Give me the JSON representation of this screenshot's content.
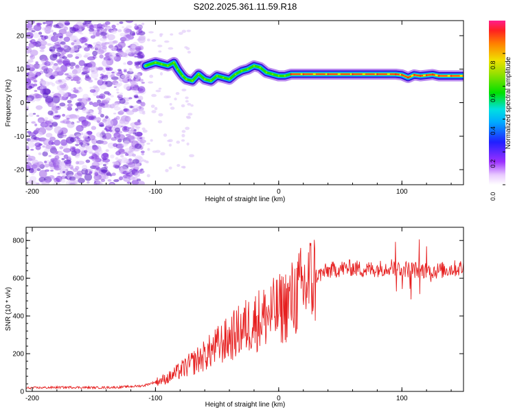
{
  "figure_title": "S202.2025.361.11.59.R18",
  "colors": {
    "snr_line": "#e62020",
    "track_core": "#ff1e1e",
    "speckle": "#8a2be2",
    "axis": "#000000"
  },
  "chart_data": [
    {
      "type": "heatmap",
      "title": "S202.2025.361.11.59.R18",
      "xlabel": "Height of straight line (km)",
      "ylabel": "Frequency (Hz)",
      "xlim": [
        -205,
        150
      ],
      "ylim": [
        -24.5,
        24.5
      ],
      "x_ticks": [
        -200,
        -100,
        0,
        100
      ],
      "x_tick_labels": [
        "-200",
        "-100",
        "0",
        "100"
      ],
      "y_ticks": [
        -20,
        -10,
        0,
        10,
        20
      ],
      "y_tick_labels": [
        "-20",
        "-10",
        "0",
        "10",
        "20"
      ],
      "noise_region_km": [
        -205,
        -110
      ],
      "signal_track": {
        "x": [
          -108,
          -100,
          -95,
          -90,
          -85,
          -82,
          -78,
          -75,
          -70,
          -65,
          -60,
          -55,
          -50,
          -45,
          -40,
          -35,
          -30,
          -25,
          -20,
          -15,
          -10,
          -5,
          0,
          5,
          10,
          20,
          40,
          60,
          80,
          95,
          100,
          105,
          110,
          115,
          120,
          125,
          130,
          140,
          150
        ],
        "freq": [
          11,
          12,
          11.5,
          11,
          12,
          10,
          8,
          7,
          6.5,
          8.5,
          7,
          6.5,
          8,
          7.5,
          7,
          8.5,
          9.5,
          10,
          11,
          10.5,
          9,
          8.5,
          8,
          8,
          8.5,
          8.5,
          8.5,
          8.5,
          8.5,
          8.5,
          8.3,
          7.5,
          8.3,
          8,
          8.2,
          8.4,
          8,
          8,
          8
        ]
      },
      "colorbar": {
        "label": "Normalized spectral amplitude",
        "range": [
          0.0,
          1.0
        ],
        "ticks": [
          0.0,
          0.2,
          0.4,
          0.6,
          0.8
        ],
        "tick_labels": [
          "0.0",
          "0.2",
          "0.4",
          "0.6",
          "0.8"
        ]
      }
    },
    {
      "type": "line",
      "xlabel": "Height of straight line (km)",
      "ylabel": "SNR (10 * v/v)",
      "xlim": [
        -205,
        150
      ],
      "ylim": [
        0,
        870
      ],
      "x_ticks": [
        -200,
        -100,
        0,
        100
      ],
      "x_tick_labels": [
        "-200",
        "-100",
        "0",
        "100"
      ],
      "y_ticks": [
        0,
        200,
        400,
        600,
        800
      ],
      "y_tick_labels": [
        "0",
        "200",
        "400",
        "600",
        "800"
      ],
      "series": [
        {
          "name": "SNR",
          "x": [
            -205,
            -190,
            -170,
            -150,
            -130,
            -110,
            -100,
            -90,
            -80,
            -70,
            -60,
            -50,
            -40,
            -30,
            -20,
            -10,
            0,
            10,
            20,
            30,
            40,
            50,
            60,
            70,
            80,
            90,
            100,
            110,
            120,
            130,
            140,
            150
          ],
          "y": [
            18,
            20,
            22,
            20,
            22,
            30,
            50,
            70,
            110,
            150,
            190,
            240,
            280,
            330,
            370,
            400,
            430,
            480,
            550,
            610,
            640,
            650,
            655,
            645,
            650,
            660,
            650,
            645,
            640,
            640,
            650,
            655
          ]
        }
      ]
    }
  ]
}
